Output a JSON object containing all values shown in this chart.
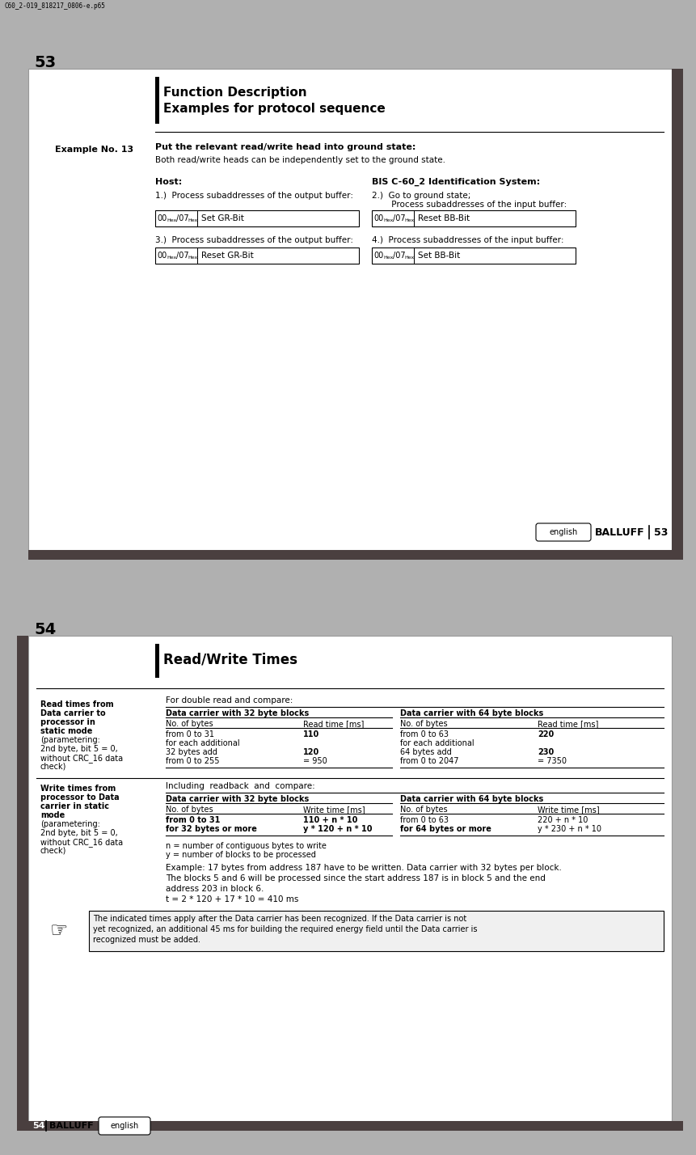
{
  "page_bg": "#b0b0b0",
  "page1": {
    "page_num": "53",
    "header_title1": "Function Description",
    "header_title2": "Examples for protocol sequence",
    "example_label": "Example No. 13",
    "example_title": "Put the relevant read/write head into ground state:",
    "example_desc": "Both read/write heads can be independently set to the ground state.",
    "host_label": "Host:",
    "bis_label": "BIS C-60_2 Identification System:",
    "step1": "1.)  Process subaddresses of the output buffer:",
    "step2a": "2.)  Go to ground state;",
    "step2b": "     Process subaddresses of the input buffer:",
    "step3": "3.)  Process subaddresses of the output buffer:",
    "step4": "4.)  Process subaddresses of the input buffer:",
    "box1_hex": "00Hex/07Hex",
    "box1_text": "Set GR-Bit",
    "box2_hex": "00Hex/07Hex",
    "box2_text": "Reset BB-Bit",
    "box3_hex": "00Hex/07Hex",
    "box3_text": "Reset GR-Bit",
    "box4_hex": "00Hex/07Hex",
    "box4_text": "Set BB-Bit",
    "footer_english": "english",
    "footer_balluff": "BALLUFF",
    "footer_num": "53",
    "file_label": "C60_2-019_818217_0806-e.p65"
  },
  "page2": {
    "page_num": "54",
    "header_title": "Read/Write Times",
    "left_label1_lines": [
      "Read times from",
      "Data carrier to",
      "processor in",
      "static mode",
      "(parametering:",
      "2nd byte, bit 5 = 0,",
      "without CRC_16 data",
      "check)"
    ],
    "left_label1_bold": [
      true,
      true,
      true,
      true,
      false,
      false,
      false,
      false
    ],
    "left_label2_lines": [
      "Write times from",
      "processor to Data",
      "carrier in static",
      "mode",
      "(parametering:",
      "2nd byte, bit 5 = 0,",
      "without CRC_16 data",
      "check)"
    ],
    "left_label2_bold": [
      true,
      true,
      true,
      true,
      false,
      false,
      false,
      false
    ],
    "double_read_title": "For double read and compare:",
    "dc32_title": "Data carrier with 32 byte blocks",
    "dc64_title": "Data carrier with 64 byte blocks",
    "read_col1_h1": "No. of bytes",
    "read_col1_h2": "Read time [ms]",
    "read_col2_h1": "No. of bytes",
    "read_col2_h2": "Read time [ms]",
    "read_32_rows": [
      [
        "from 0 to 31",
        "110",
        false,
        false
      ],
      [
        "for each additional",
        "",
        false,
        false
      ],
      [
        "32 bytes add",
        "120",
        false,
        false
      ],
      [
        "from 0 to 255",
        "= 950",
        false,
        false
      ]
    ],
    "read_64_rows": [
      [
        "from 0 to 63",
        "220",
        false,
        false
      ],
      [
        "for each additional",
        "",
        false,
        false
      ],
      [
        "64 bytes add",
        "230",
        false,
        false
      ],
      [
        "from 0 to 2047",
        "= 7350",
        false,
        false
      ]
    ],
    "including_title": "Including  readback  and  compare:",
    "write_dc32_title": "Data carrier with 32 byte blocks",
    "write_dc64_title": "Data carrier with 64 byte blocks",
    "write_col1_h1": "No. of bytes",
    "write_col1_h2": "Write time [ms]",
    "write_col2_h1": "No. of bytes",
    "write_col2_h2": "Write time [ms]",
    "write_32_rows": [
      [
        "from 0 to 31",
        "110 + n * 10",
        true,
        false
      ],
      [
        "for 32 bytes or more",
        "y * 120 + n * 10",
        true,
        true
      ]
    ],
    "write_64_rows": [
      [
        "from 0 to 63",
        "220 + n * 10",
        false,
        false
      ],
      [
        "for 64 bytes or more",
        "y * 230 + n * 10",
        true,
        false
      ]
    ],
    "note1": "n = number of contiguous bytes to write",
    "note2": "y = number of blocks to be processed",
    "example_line1": "Example: 17 bytes from address 187 have to be written. Data carrier with 32 bytes per block.",
    "example_line2": "The blocks 5 and 6 will be processed since the start address 187 is in block 5 and the end",
    "example_line3": "address 203 in block 6.",
    "formula": "t = 2 * 120 + 17 * 10 = 410 ms",
    "info_line1": "The indicated times apply after the Data carrier has been recognized. If the Data carrier is not",
    "info_line2": "yet recognized, an additional 45 ms for building the required energy field until the Data carrier is",
    "info_line3": "recognized must be added.",
    "info_bold_word": "after the Data carrier has been recognized.",
    "footer_num": "54",
    "footer_balluff": "BALLUFF",
    "footer_english": "english"
  }
}
